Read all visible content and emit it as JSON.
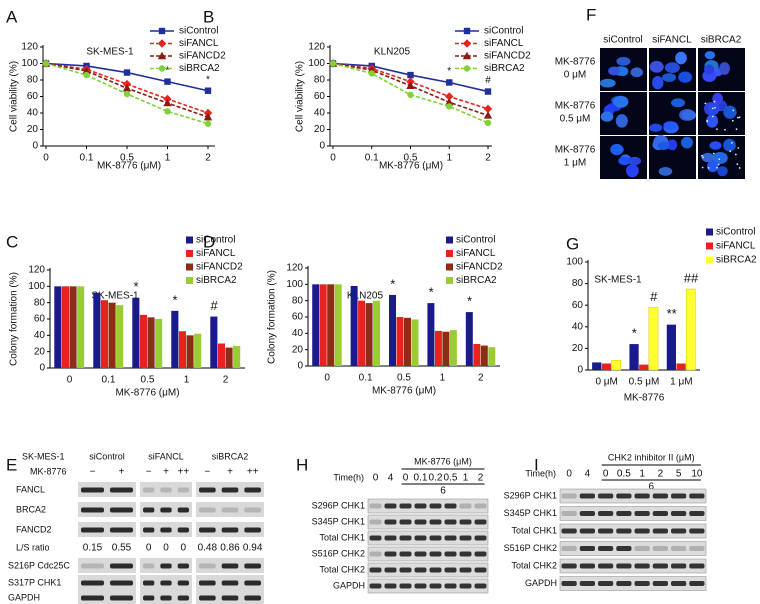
{
  "chart_data": [
    {
      "type": "line",
      "panel": "A",
      "title": "SK-MES-1",
      "ylabel": "Cell viability (%)",
      "xlabel": "MK-8776 (μM)",
      "categories": [
        "0",
        "0.1",
        "0.5",
        "1",
        "2"
      ],
      "ylim": [
        0,
        120
      ],
      "yticks": [
        0,
        20,
        40,
        60,
        80,
        100,
        120
      ],
      "series": [
        {
          "name": "siControl",
          "color": "#1f2f9c",
          "style": "solid",
          "marker": "square",
          "values": [
            100,
            97,
            89,
            78,
            67
          ],
          "annotations": [
            null,
            null,
            null,
            "*",
            "*"
          ]
        },
        {
          "name": "siFANCL",
          "color": "#e3261f",
          "style": "dashed",
          "marker": "diamond",
          "values": [
            100,
            93,
            75,
            57,
            40
          ]
        },
        {
          "name": "siFANCD2",
          "color": "#8b1a12",
          "style": "dashed",
          "marker": "triangle",
          "values": [
            100,
            91,
            70,
            52,
            35
          ]
        },
        {
          "name": "siBRCA2",
          "color": "#7fd23a",
          "style": "dashed",
          "marker": "circle",
          "values": [
            100,
            86,
            63,
            42,
            27
          ]
        }
      ]
    },
    {
      "type": "line",
      "panel": "B",
      "title": "KLN205",
      "ylabel": "Cell viability (%)",
      "xlabel": "MK-8776 (μM)",
      "categories": [
        "0",
        "0.1",
        "0.5",
        "1",
        "2"
      ],
      "ylim": [
        0,
        120
      ],
      "yticks": [
        0,
        20,
        40,
        60,
        80,
        100,
        120
      ],
      "series": [
        {
          "name": "siControl",
          "color": "#1f2f9c",
          "style": "solid",
          "marker": "square",
          "values": [
            100,
            97,
            86,
            77,
            66
          ],
          "annotations": [
            null,
            null,
            null,
            "*",
            "#"
          ]
        },
        {
          "name": "siFANCL",
          "color": "#e3261f",
          "style": "dashed",
          "marker": "diamond",
          "values": [
            100,
            94,
            78,
            60,
            45
          ]
        },
        {
          "name": "siFANCD2",
          "color": "#8b1a12",
          "style": "dashed",
          "marker": "triangle",
          "values": [
            100,
            92,
            73,
            53,
            37
          ]
        },
        {
          "name": "siBRCA2",
          "color": "#7fd23a",
          "style": "dashed",
          "marker": "circle",
          "values": [
            100,
            88,
            62,
            48,
            28
          ]
        }
      ]
    },
    {
      "type": "bar",
      "panel": "C",
      "title": "SK-MES-1",
      "ylabel": "Colony formation (%)",
      "xlabel": "MK-8776 (μM)",
      "categories": [
        "0",
        "0.1",
        "0.5",
        "1",
        "2"
      ],
      "ylim": [
        0,
        120
      ],
      "yticks": [
        0,
        20,
        40,
        60,
        80,
        100,
        120
      ],
      "series": [
        {
          "name": "siControl",
          "color": "#1a1a8c",
          "values": [
            100,
            92,
            86,
            70,
            63
          ],
          "annotations": [
            null,
            null,
            "*",
            "*",
            "#"
          ]
        },
        {
          "name": "siFANCL",
          "color": "#e8221e",
          "values": [
            100,
            83,
            65,
            45,
            30
          ]
        },
        {
          "name": "siFANCD2",
          "color": "#8b2e16",
          "values": [
            100,
            80,
            62,
            40,
            25
          ]
        },
        {
          "name": "siBRCA2",
          "color": "#9acd32",
          "values": [
            100,
            77,
            60,
            42,
            27
          ]
        }
      ]
    },
    {
      "type": "bar",
      "panel": "D",
      "title": "KLN205",
      "ylabel": "Colony formation (%)",
      "xlabel": "MK-8776 (μM)",
      "categories": [
        "0",
        "0.1",
        "0.5",
        "1",
        "2"
      ],
      "ylim": [
        0,
        120
      ],
      "yticks": [
        0,
        20,
        40,
        60,
        80,
        100,
        120
      ],
      "series": [
        {
          "name": "siControl",
          "color": "#1a1a8c",
          "values": [
            100,
            98,
            87,
            77,
            66
          ],
          "annotations": [
            null,
            null,
            "*",
            "*",
            "*"
          ]
        },
        {
          "name": "siFANCL",
          "color": "#e8221e",
          "values": [
            100,
            80,
            60,
            43,
            27
          ]
        },
        {
          "name": "siFANCD2",
          "color": "#8b2e16",
          "values": [
            100,
            77,
            59,
            42,
            25
          ]
        },
        {
          "name": "siBRCA2",
          "color": "#9acd32",
          "values": [
            100,
            80,
            57,
            44,
            23
          ]
        }
      ]
    },
    {
      "type": "bar",
      "panel": "G",
      "title": "SK-MES-1",
      "xlabel": "MK-8776",
      "categories": [
        "0 μM",
        "0.5 μM",
        "1 μM"
      ],
      "ylim": [
        0,
        100
      ],
      "yticks": [
        0,
        20,
        40,
        60,
        80,
        100
      ],
      "series": [
        {
          "name": "siControl",
          "color": "#1a1a8c",
          "values": [
            7,
            24,
            42
          ],
          "annotations": [
            null,
            "*",
            "**"
          ]
        },
        {
          "name": "siFANCL",
          "color": "#e8221e",
          "values": [
            6,
            5,
            6
          ]
        },
        {
          "name": "siBRCA2",
          "color": "#ffff33",
          "values": [
            9,
            58,
            75
          ],
          "annotations": [
            null,
            "#",
            "##"
          ]
        }
      ]
    }
  ],
  "panels": {
    "E": {
      "label": "E",
      "cell": "SK-MES-1",
      "drug": "MK-8776",
      "groups": [
        {
          "name": "siControl",
          "doses": [
            "−",
            "+"
          ],
          "ratios": [
            0.15,
            0.55
          ]
        },
        {
          "name": "siFANCL",
          "doses": [
            "−",
            "+",
            "++"
          ],
          "ratios": [
            0,
            0,
            0
          ]
        },
        {
          "name": "siBRCA2",
          "doses": [
            "−",
            "+",
            "++"
          ],
          "ratios": [
            0.48,
            0.86,
            0.94
          ]
        }
      ],
      "rows": [
        "FANCL",
        "BRCA2",
        "FANCD2",
        "L/S ratio",
        "S216P Cdc25C",
        "S317P CHK1",
        "GAPDH"
      ]
    },
    "F": {
      "label": "F",
      "columns": [
        "siControl",
        "siFANCL",
        "siBRCA2"
      ],
      "rows": [
        {
          "drug": "MK-8776",
          "dose": "0 μM"
        },
        {
          "drug": "MK-8776",
          "dose": "0.5 μM"
        },
        {
          "drug": "MK-8776",
          "dose": "1 μM"
        }
      ]
    },
    "H": {
      "label": "H",
      "treatment": "MK-8776 (μM)",
      "time_label": "Time(h)",
      "times": [
        "0",
        "4"
      ],
      "treated_time": "6",
      "doses": [
        "0",
        "0.1",
        "0.2",
        "0.5",
        "1",
        "2"
      ],
      "rows": [
        "S296P CHK1",
        "S345P CHK1",
        "Total CHK1",
        "S516P CHK2",
        "Total CHK2",
        "GAPDH"
      ]
    },
    "I": {
      "label": "I",
      "treatment": "CHK2 inhibitor II (μM)",
      "time_label": "Time(h)",
      "times": [
        "0",
        "4"
      ],
      "treated_time": "6",
      "doses": [
        "0",
        "0.5",
        "1",
        "2",
        "5",
        "10"
      ],
      "rows": [
        "S296P CHK1",
        "S345P CHK1",
        "Total CHK1",
        "S516P CHK2",
        "Total CHK2",
        "GAPDH"
      ]
    }
  }
}
